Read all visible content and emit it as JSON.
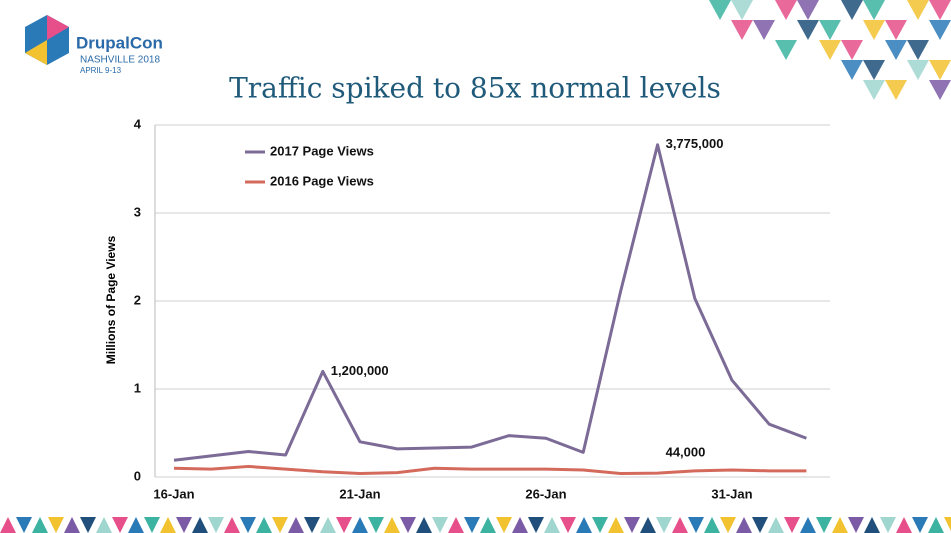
{
  "logo": {
    "name": "DrupalCon",
    "city": "NASHVILLE 2018",
    "dates": "APRIL 9-13"
  },
  "chart_data": {
    "type": "line",
    "title": "Traffic spiked to 85x normal levels",
    "y_label": "Millions of Page Views",
    "categories": [
      "16-Jan",
      null,
      null,
      null,
      null,
      "21-Jan",
      null,
      null,
      null,
      null,
      "26-Jan",
      null,
      null,
      null,
      null,
      "31-Jan",
      null,
      null
    ],
    "series": [
      {
        "name": "2017 Page Views",
        "color": "#7b6b96",
        "values": [
          0.19,
          0.24,
          0.29,
          0.25,
          1.2,
          0.4,
          0.32,
          0.33,
          0.34,
          0.47,
          0.44,
          0.28,
          2.1,
          3.775,
          2.03,
          1.1,
          0.6,
          0.44
        ],
        "value_labels": [
          null,
          null,
          null,
          null,
          "1,200,000",
          null,
          null,
          null,
          null,
          null,
          null,
          null,
          null,
          "3,775,000",
          null,
          null,
          null,
          null
        ]
      },
      {
        "name": "2016 Page Views",
        "color": "#d46a5c",
        "values": [
          0.1,
          0.09,
          0.12,
          0.09,
          0.06,
          0.04,
          0.05,
          0.1,
          0.09,
          0.09,
          0.09,
          0.08,
          0.04,
          0.044,
          0.07,
          0.08,
          0.07,
          0.07
        ],
        "value_labels": [
          null,
          null,
          null,
          null,
          null,
          null,
          null,
          null,
          null,
          null,
          null,
          null,
          null,
          "44,000",
          null,
          null,
          null,
          null
        ]
      }
    ],
    "ylim": [
      0,
      4
    ],
    "yticks": [
      0,
      1,
      2,
      3,
      4
    ],
    "grid": true,
    "legend": "top-left"
  }
}
